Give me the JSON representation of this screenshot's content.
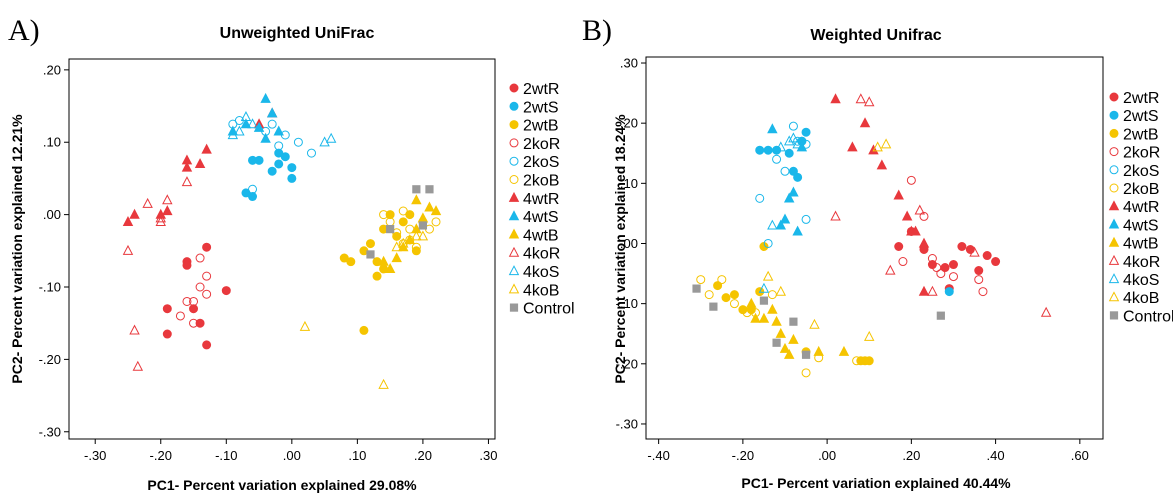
{
  "chart_data": [
    {
      "type": "scatter",
      "panel_letter": "A)",
      "title": "Unweighted UniFrac",
      "xlabel": "PC1- Percent variation explained 29.08%",
      "ylabel": "PC2- Percent variation explained 12.21%",
      "xlim": [
        -0.34,
        0.31
      ],
      "ylim": [
        -0.31,
        0.215
      ],
      "xticks": [
        -0.3,
        -0.2,
        -0.1,
        0.0,
        0.1,
        0.2,
        0.3
      ],
      "xtick_labels": [
        "-.30",
        "-.20",
        "-.10",
        ".00",
        ".10",
        ".20",
        ".30"
      ],
      "yticks": [
        -0.3,
        -0.2,
        -0.1,
        0.0,
        0.1,
        0.2
      ],
      "ytick_labels": [
        "-.30",
        "-.20",
        "-.10",
        ".00",
        ".10",
        ".20"
      ],
      "grid": false,
      "legend_position": "right",
      "series": [
        {
          "name": "2wtR",
          "x": [
            -0.13,
            -0.16,
            -0.16,
            -0.19,
            -0.15,
            -0.14,
            -0.13,
            -0.1,
            -0.19
          ],
          "y": [
            -0.045,
            -0.065,
            -0.07,
            -0.13,
            -0.13,
            -0.15,
            -0.18,
            -0.105,
            -0.165
          ]
        },
        {
          "name": "2wtS",
          "x": [
            -0.06,
            -0.05,
            -0.02,
            -0.01,
            0.0,
            0.0,
            -0.03,
            -0.07,
            -0.06,
            -0.02
          ],
          "y": [
            0.075,
            0.075,
            0.085,
            0.08,
            0.065,
            0.05,
            0.06,
            0.03,
            0.025,
            0.07
          ]
        },
        {
          "name": "2wtB",
          "x": [
            0.08,
            0.09,
            0.11,
            0.12,
            0.13,
            0.14,
            0.15,
            0.16,
            0.17,
            0.18,
            0.19,
            0.13,
            0.14,
            0.11
          ],
          "y": [
            -0.06,
            -0.065,
            -0.05,
            -0.04,
            -0.065,
            -0.02,
            0.0,
            -0.03,
            -0.01,
            0.0,
            -0.05,
            -0.085,
            -0.075,
            -0.16
          ]
        },
        {
          "name": "2koR",
          "x": [
            -0.13,
            -0.14,
            -0.15,
            -0.15,
            -0.16,
            -0.14,
            -0.17,
            -0.13
          ],
          "y": [
            -0.085,
            -0.06,
            -0.12,
            -0.15,
            -0.12,
            -0.1,
            -0.14,
            -0.11
          ]
        },
        {
          "name": "2koS",
          "x": [
            -0.09,
            -0.08,
            -0.04,
            -0.03,
            -0.01,
            0.01,
            0.03,
            -0.02,
            -0.06
          ],
          "y": [
            0.125,
            0.13,
            0.115,
            0.125,
            0.11,
            0.1,
            0.085,
            0.095,
            0.035
          ]
        },
        {
          "name": "2koB",
          "x": [
            0.14,
            0.15,
            0.16,
            0.17,
            0.18,
            0.19,
            0.2,
            0.21,
            0.22,
            0.18,
            0.17
          ],
          "y": [
            0.0,
            -0.01,
            -0.025,
            0.005,
            -0.02,
            -0.045,
            -0.01,
            -0.02,
            -0.01,
            -0.035,
            -0.04
          ]
        },
        {
          "name": "4wtR",
          "x": [
            -0.25,
            -0.24,
            -0.2,
            -0.19,
            -0.16,
            -0.16,
            -0.14,
            -0.13,
            -0.05,
            -0.03
          ],
          "y": [
            -0.01,
            0.0,
            0.0,
            0.005,
            0.065,
            0.075,
            0.07,
            0.09,
            0.125,
            0.14
          ]
        },
        {
          "name": "4wtS",
          "x": [
            -0.09,
            -0.07,
            -0.05,
            -0.04,
            -0.03,
            -0.02,
            -0.04
          ],
          "y": [
            0.115,
            0.125,
            0.12,
            0.16,
            0.14,
            0.115,
            0.105
          ]
        },
        {
          "name": "4wtB",
          "x": [
            0.15,
            0.16,
            0.17,
            0.18,
            0.19,
            0.2,
            0.21,
            0.22,
            0.19,
            0.14
          ],
          "y": [
            -0.075,
            -0.06,
            -0.045,
            -0.035,
            -0.02,
            -0.005,
            0.01,
            0.005,
            0.02,
            -0.065
          ]
        },
        {
          "name": "4koR",
          "x": [
            -0.25,
            -0.24,
            -0.235,
            -0.22,
            -0.2,
            -0.2,
            -0.19,
            -0.16
          ],
          "y": [
            -0.05,
            -0.16,
            -0.21,
            0.015,
            -0.005,
            -0.01,
            0.02,
            0.045
          ]
        },
        {
          "name": "4koS",
          "x": [
            -0.09,
            -0.07,
            -0.06,
            -0.08,
            0.05,
            0.06
          ],
          "y": [
            0.11,
            0.135,
            0.125,
            0.115,
            0.1,
            0.105
          ]
        },
        {
          "name": "4koB",
          "x": [
            0.02,
            0.14,
            0.19,
            0.2,
            0.16,
            0.17
          ],
          "y": [
            -0.155,
            -0.235,
            -0.03,
            -0.03,
            -0.045,
            -0.04
          ]
        },
        {
          "name": "Control",
          "x": [
            0.12,
            0.15,
            0.19,
            0.21,
            0.2
          ],
          "y": [
            -0.055,
            -0.02,
            0.035,
            0.035,
            -0.015
          ]
        }
      ]
    },
    {
      "type": "scatter",
      "panel_letter": "B)",
      "title": "Weighted Unifrac",
      "xlabel": "PC1- Percent variation explained 40.44%",
      "ylabel": "PC2- Percent variation explained 18.24%",
      "xlim": [
        -0.43,
        0.655
      ],
      "ylim": [
        -0.325,
        0.31
      ],
      "xticks": [
        -0.4,
        -0.2,
        0.0,
        0.2,
        0.4,
        0.6
      ],
      "xtick_labels": [
        "-.40",
        "-.20",
        ".00",
        ".20",
        ".40",
        ".60"
      ],
      "yticks": [
        -0.3,
        -0.2,
        -0.1,
        0.0,
        0.1,
        0.2,
        0.3
      ],
      "ytick_labels": [
        "-.30",
        "-.20",
        "-.10",
        ".00",
        ".10",
        ".20",
        ".30"
      ],
      "grid": false,
      "legend_position": "right",
      "series": [
        {
          "name": "2wtR",
          "x": [
            0.17,
            0.2,
            0.23,
            0.25,
            0.28,
            0.3,
            0.32,
            0.34,
            0.36,
            0.38,
            0.4,
            0.29
          ],
          "y": [
            -0.005,
            0.02,
            -0.01,
            -0.035,
            -0.04,
            -0.035,
            -0.005,
            -0.01,
            -0.045,
            -0.02,
            -0.03,
            -0.075
          ]
        },
        {
          "name": "2wtS",
          "x": [
            -0.16,
            -0.14,
            -0.12,
            -0.09,
            -0.08,
            -0.07,
            -0.06,
            -0.05,
            0.29
          ],
          "y": [
            0.155,
            0.155,
            0.155,
            0.15,
            0.12,
            0.11,
            0.17,
            0.185,
            -0.08
          ]
        },
        {
          "name": "2wtB",
          "x": [
            -0.26,
            -0.24,
            -0.22,
            -0.2,
            -0.18,
            -0.16,
            -0.15,
            -0.05,
            0.08,
            0.09,
            0.1
          ],
          "y": [
            -0.07,
            -0.09,
            -0.085,
            -0.11,
            -0.11,
            -0.08,
            -0.005,
            -0.18,
            -0.195,
            -0.195,
            -0.195
          ]
        },
        {
          "name": "2koR",
          "x": [
            0.2,
            0.23,
            0.25,
            0.26,
            0.27,
            0.3,
            0.36,
            0.37,
            0.18
          ],
          "y": [
            0.105,
            0.045,
            -0.025,
            -0.04,
            -0.05,
            -0.055,
            -0.06,
            -0.08,
            -0.03
          ]
        },
        {
          "name": "2koS",
          "x": [
            -0.16,
            -0.12,
            -0.1,
            -0.08,
            -0.07,
            -0.05,
            -0.06,
            -0.05,
            -0.14
          ],
          "y": [
            0.075,
            0.14,
            0.12,
            0.195,
            0.17,
            0.04,
            0.17,
            0.165,
            0.0
          ]
        },
        {
          "name": "2koB",
          "x": [
            -0.3,
            -0.28,
            -0.25,
            -0.22,
            -0.19,
            -0.17,
            -0.13,
            -0.05,
            -0.02,
            0.07
          ],
          "y": [
            -0.06,
            -0.085,
            -0.06,
            -0.1,
            -0.115,
            -0.115,
            -0.085,
            -0.215,
            -0.19,
            -0.195
          ]
        },
        {
          "name": "4wtR",
          "x": [
            0.02,
            0.06,
            0.09,
            0.11,
            0.13,
            0.17,
            0.19,
            0.21,
            0.23,
            0.23
          ],
          "y": [
            0.24,
            0.16,
            0.2,
            0.155,
            0.13,
            0.08,
            0.045,
            0.02,
            0.0,
            -0.08
          ]
        },
        {
          "name": "4wtS",
          "x": [
            -0.13,
            -0.11,
            -0.09,
            -0.08,
            -0.1,
            -0.06,
            -0.07
          ],
          "y": [
            0.19,
            0.03,
            0.075,
            0.085,
            0.04,
            0.16,
            0.02
          ]
        },
        {
          "name": "4wtB",
          "x": [
            -0.18,
            -0.17,
            -0.15,
            -0.13,
            -0.12,
            -0.11,
            -0.1,
            -0.09,
            -0.08,
            -0.02,
            0.04
          ],
          "y": [
            -0.1,
            -0.125,
            -0.125,
            -0.11,
            -0.13,
            -0.15,
            -0.175,
            -0.185,
            -0.16,
            -0.18,
            -0.18
          ]
        },
        {
          "name": "4koR",
          "x": [
            0.02,
            0.08,
            0.1,
            0.15,
            0.2,
            0.22,
            0.25,
            0.35,
            0.52
          ],
          "y": [
            0.045,
            0.24,
            0.235,
            -0.045,
            0.02,
            0.055,
            -0.08,
            -0.015,
            -0.115
          ]
        },
        {
          "name": "4koS",
          "x": [
            -0.15,
            -0.13,
            -0.11,
            -0.09,
            -0.08,
            -0.07
          ],
          "y": [
            -0.075,
            0.03,
            0.16,
            0.17,
            0.175,
            0.165
          ]
        },
        {
          "name": "4koB",
          "x": [
            -0.14,
            -0.11,
            -0.03,
            0.1,
            0.12,
            0.14
          ],
          "y": [
            -0.055,
            -0.08,
            -0.135,
            -0.155,
            0.16,
            0.165
          ]
        },
        {
          "name": "Control",
          "x": [
            -0.31,
            -0.27,
            -0.15,
            -0.12,
            -0.08,
            -0.05,
            0.27
          ],
          "y": [
            -0.075,
            -0.105,
            -0.095,
            -0.165,
            -0.13,
            -0.185,
            -0.12
          ]
        }
      ]
    }
  ],
  "legend_styles": [
    {
      "name": "2wtR",
      "shape": "circle",
      "filled": true,
      "color": "#e8383d"
    },
    {
      "name": "2wtS",
      "shape": "circle",
      "filled": true,
      "color": "#1ab7ea"
    },
    {
      "name": "2wtB",
      "shape": "circle",
      "filled": true,
      "color": "#f5c400"
    },
    {
      "name": "2koR",
      "shape": "circle",
      "filled": false,
      "color": "#e8383d"
    },
    {
      "name": "2koS",
      "shape": "circle",
      "filled": false,
      "color": "#1ab7ea"
    },
    {
      "name": "2koB",
      "shape": "circle",
      "filled": false,
      "color": "#f5c400"
    },
    {
      "name": "4wtR",
      "shape": "triangle",
      "filled": true,
      "color": "#e8383d"
    },
    {
      "name": "4wtS",
      "shape": "triangle",
      "filled": true,
      "color": "#1ab7ea"
    },
    {
      "name": "4wtB",
      "shape": "triangle",
      "filled": true,
      "color": "#f5c400"
    },
    {
      "name": "4koR",
      "shape": "triangle",
      "filled": false,
      "color": "#e8383d"
    },
    {
      "name": "4koS",
      "shape": "triangle",
      "filled": false,
      "color": "#1ab7ea"
    },
    {
      "name": "4koB",
      "shape": "triangle",
      "filled": false,
      "color": "#f5c400"
    },
    {
      "name": "Control",
      "shape": "square",
      "filled": true,
      "color": "#999999"
    }
  ]
}
